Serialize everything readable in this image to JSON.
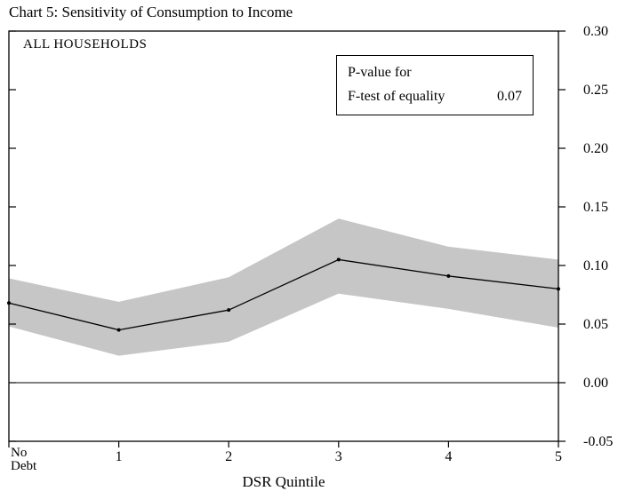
{
  "title": "Chart 5: Sensitivity of Consumption to Income",
  "chart_label": "ALL HOUSEHOLDS",
  "legend": {
    "line1": "P-value for",
    "line2": "F-test of equality",
    "value": "0.07"
  },
  "chart_data": {
    "type": "line",
    "title": "Chart 5: Sensitivity of Consumption to Income",
    "subtitle": "ALL HOUSEHOLDS",
    "xlabel": "DSR Quintile",
    "ylabel": "",
    "categories": [
      "No Debt",
      "1",
      "2",
      "3",
      "4",
      "5"
    ],
    "series": [
      {
        "name": "Sensitivity estimate",
        "values": [
          0.068,
          0.045,
          0.062,
          0.105,
          0.091,
          0.08
        ]
      },
      {
        "name": "Confidence band upper",
        "values": [
          0.089,
          0.069,
          0.09,
          0.14,
          0.116,
          0.105
        ]
      },
      {
        "name": "Confidence band lower",
        "values": [
          0.048,
          0.023,
          0.035,
          0.076,
          0.063,
          0.047
        ]
      }
    ],
    "annotations": [
      "P-value for F-test of equality 0.07"
    ],
    "ylim": [
      -0.05,
      0.3
    ],
    "yticks": [
      -0.05,
      0.0,
      0.05,
      0.1,
      0.15,
      0.2,
      0.25,
      0.3
    ],
    "ytick_side": "right",
    "grid": false,
    "zero_line": true,
    "band_color": "#c6c6c6",
    "line_color": "#000000"
  }
}
